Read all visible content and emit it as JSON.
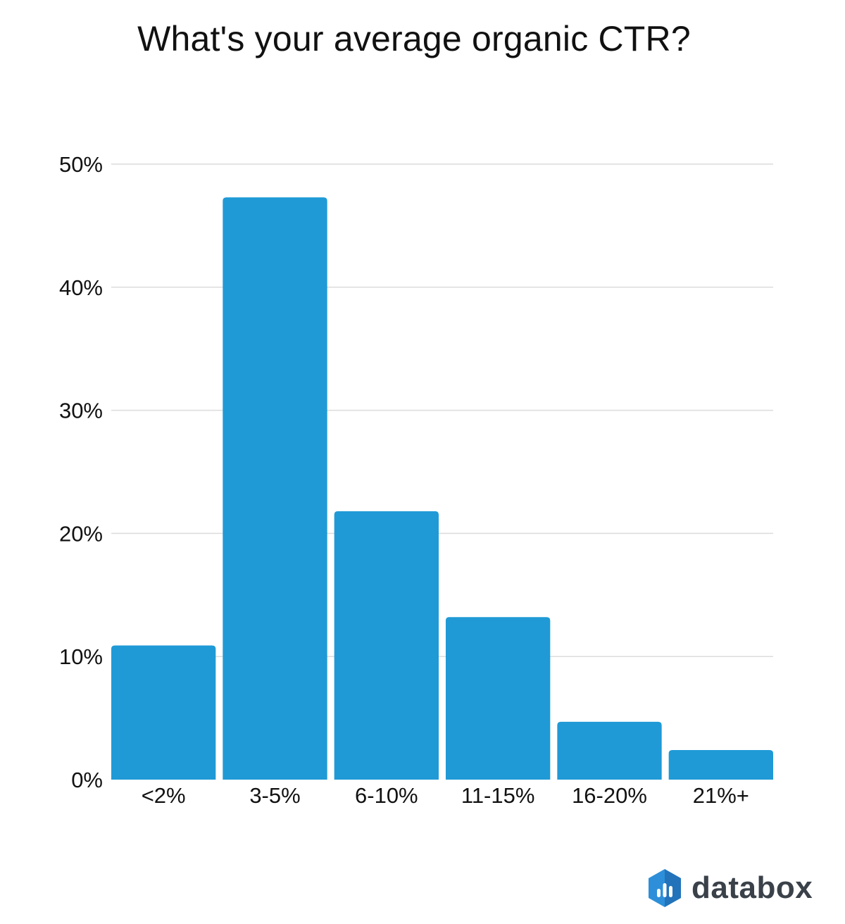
{
  "title": "What's your average organic CTR?",
  "brand": {
    "name": "databox",
    "logo_icon": "databox-logo-icon"
  },
  "colors": {
    "bar": "#1f9ad6",
    "grid": "#dcdcdc",
    "text": "#111111",
    "brand_text": "#3a4149",
    "logo_dark": "#1a5aa8",
    "logo_light": "#2d8fd9"
  },
  "chart_data": {
    "type": "bar",
    "title": "What's your average organic CTR?",
    "categories": [
      "<2%",
      "3-5%",
      "6-10%",
      "11-15%",
      "16-20%",
      "21%+"
    ],
    "values": [
      10.9,
      47.3,
      21.8,
      13.2,
      4.7,
      2.4
    ],
    "unit": "%",
    "ylim": [
      0,
      50
    ],
    "yticks": [
      0,
      10,
      20,
      30,
      40,
      50
    ],
    "ytick_labels": [
      "0%",
      "10%",
      "20%",
      "30%",
      "40%",
      "50%"
    ],
    "xlabel": "",
    "ylabel": "",
    "grid": true,
    "legend": "none"
  }
}
